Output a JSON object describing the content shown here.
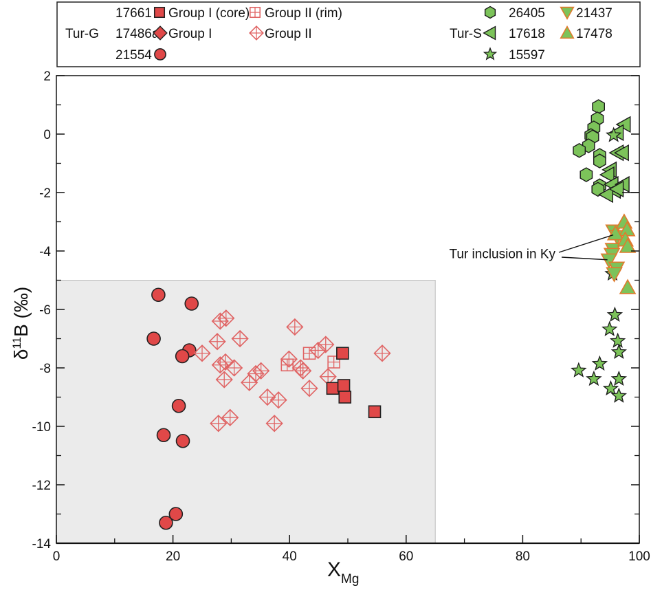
{
  "chart_data": {
    "type": "scatter",
    "title": "",
    "xlabel": "X",
    "xlabel_subscript": "Mg",
    "ylabel": "δ",
    "ylabel_superscript": "11",
    "ylabel_rest": "B (‰)",
    "xlim": [
      0,
      100
    ],
    "ylim": [
      -14,
      2
    ],
    "xticks": [
      0,
      20,
      40,
      60,
      80,
      100
    ],
    "xticks_minor": [
      10,
      30,
      50,
      70,
      90
    ],
    "yticks": [
      2,
      0,
      -2,
      -4,
      -6,
      -8,
      -10,
      -12,
      -14
    ],
    "yticks_minor": [
      1,
      -1,
      -3,
      -5,
      -7,
      -9,
      -11,
      -13
    ],
    "grid": false,
    "legend_position": "top",
    "shaded_region": {
      "x": [
        0,
        65
      ],
      "y": [
        -14,
        -5
      ],
      "color": "#ebebeb"
    },
    "colors": {
      "red": "#e04848",
      "red_outline": "#222222",
      "red_open": "#e06464",
      "green": "#7cc35a",
      "green_outline": "#1a1a1a",
      "orange_outline": "#e07a2c"
    },
    "legend": {
      "tur_g_label": "Tur-G",
      "tur_s_label": "Tur-S",
      "entries": [
        {
          "id": "17661",
          "label": "17661",
          "marker": "square-filled",
          "text": "Group I (core)"
        },
        {
          "id": "17661rim",
          "label": "",
          "marker": "square-grid",
          "text": "Group II (rim)"
        },
        {
          "id": "17486a",
          "label": "17486a",
          "marker": "diamond-filled",
          "text": "Group I"
        },
        {
          "id": "17486a2",
          "label": "",
          "marker": "diamond-cross",
          "text": "Group II"
        },
        {
          "id": "21554",
          "label": "21554",
          "marker": "circle",
          "text": ""
        },
        {
          "id": "26405",
          "label": "26405",
          "marker": "hexagon",
          "text": ""
        },
        {
          "id": "17618",
          "label": "17618",
          "marker": "triangle-left",
          "text": ""
        },
        {
          "id": "15597",
          "label": "15597",
          "marker": "star",
          "text": ""
        },
        {
          "id": "21437",
          "label": "21437",
          "marker": "triangle-down",
          "text": ""
        },
        {
          "id": "17478",
          "label": "17478",
          "marker": "triangle-up",
          "text": ""
        }
      ]
    },
    "annotation": {
      "text": "Tur inclusion in Ky",
      "points_to": [
        [
          96.0,
          -3.45
        ],
        [
          95.0,
          -4.3
        ]
      ],
      "text_at": [
        87.0,
        -4.1
      ]
    },
    "series": [
      {
        "name": "21554",
        "group": "Tur-G",
        "marker": "circle",
        "points": [
          [
            17.5,
            -5.5
          ],
          [
            23.2,
            -5.8
          ],
          [
            16.7,
            -7.0
          ],
          [
            22.8,
            -7.4
          ],
          [
            21.6,
            -7.6
          ],
          [
            21.0,
            -9.3
          ],
          [
            18.4,
            -10.3
          ],
          [
            21.7,
            -10.5
          ],
          [
            20.5,
            -13.0
          ],
          [
            18.8,
            -13.3
          ]
        ]
      },
      {
        "name": "17486a Group II",
        "group": "Tur-G",
        "marker": "diamond-cross",
        "points": [
          [
            28.1,
            -6.4
          ],
          [
            29.1,
            -6.3
          ],
          [
            27.6,
            -7.1
          ],
          [
            31.5,
            -7.0
          ],
          [
            25.0,
            -7.5
          ],
          [
            28.1,
            -7.9
          ],
          [
            29.0,
            -7.8
          ],
          [
            30.5,
            -8.0
          ],
          [
            28.8,
            -8.4
          ],
          [
            33.1,
            -8.5
          ],
          [
            34.2,
            -8.2
          ],
          [
            35.1,
            -8.1
          ],
          [
            36.2,
            -9.0
          ],
          [
            38.1,
            -9.1
          ],
          [
            27.8,
            -9.9
          ],
          [
            29.8,
            -9.7
          ],
          [
            37.4,
            -9.9
          ],
          [
            40.9,
            -6.6
          ],
          [
            46.2,
            -7.2
          ],
          [
            44.9,
            -7.4
          ],
          [
            39.9,
            -7.7
          ],
          [
            42.3,
            -8.1
          ],
          [
            41.9,
            -8.0
          ],
          [
            46.6,
            -8.3
          ],
          [
            43.4,
            -8.7
          ],
          [
            55.9,
            -7.5
          ]
        ]
      },
      {
        "name": "17661 Group II (rim)",
        "group": "Tur-G",
        "marker": "square-grid",
        "points": [
          [
            43.4,
            -7.5
          ],
          [
            39.6,
            -7.9
          ],
          [
            47.6,
            -7.8
          ]
        ]
      },
      {
        "name": "17661 Group I (core)",
        "group": "Tur-G",
        "marker": "square-filled",
        "points": [
          [
            49.1,
            -7.5
          ],
          [
            47.4,
            -8.7
          ],
          [
            49.3,
            -8.6
          ],
          [
            49.5,
            -9.0
          ],
          [
            54.6,
            -9.5
          ]
        ]
      },
      {
        "name": "26405",
        "group": "Tur-S",
        "marker": "hexagon",
        "points": [
          [
            93.0,
            0.94
          ],
          [
            92.8,
            0.52
          ],
          [
            92.2,
            0.21
          ],
          [
            91.7,
            -0.05
          ],
          [
            92.0,
            -0.1
          ],
          [
            91.3,
            -0.4
          ],
          [
            89.7,
            -0.56
          ],
          [
            93.2,
            -0.73
          ],
          [
            93.2,
            -0.92
          ],
          [
            90.9,
            -1.39
          ],
          [
            93.2,
            -1.77
          ],
          [
            92.9,
            -1.89
          ]
        ]
      },
      {
        "name": "17618",
        "group": "Tur-S",
        "marker": "triangle-left",
        "points": [
          [
            97.4,
            0.33
          ],
          [
            96.2,
            0.05
          ],
          [
            96.2,
            -0.64
          ],
          [
            97.1,
            -0.64
          ],
          [
            95.0,
            -1.22
          ],
          [
            94.6,
            -1.39
          ],
          [
            95.3,
            -1.72
          ],
          [
            97.2,
            -1.72
          ],
          [
            95.7,
            -1.93
          ],
          [
            94.4,
            -2.07
          ],
          [
            96.2,
            -1.88
          ]
        ]
      },
      {
        "name": "15597",
        "group": "Tur-S",
        "marker": "star",
        "points": [
          [
            95.6,
            -0.04
          ],
          [
            95.4,
            -4.78
          ],
          [
            95.8,
            -6.19
          ],
          [
            94.9,
            -6.68
          ],
          [
            96.3,
            -7.08
          ],
          [
            96.5,
            -7.46
          ],
          [
            93.2,
            -7.86
          ],
          [
            89.6,
            -8.09
          ],
          [
            92.2,
            -8.38
          ],
          [
            96.5,
            -8.38
          ],
          [
            95.1,
            -8.71
          ],
          [
            96.5,
            -8.96
          ]
        ]
      },
      {
        "name": "21437",
        "group": "Tur-S",
        "marker": "triangle-down",
        "points": [
          [
            95.6,
            -3.32
          ],
          [
            96.2,
            -3.51
          ],
          [
            95.5,
            -3.95
          ],
          [
            95.3,
            -4.12
          ],
          [
            94.8,
            -4.31
          ],
          [
            96.1,
            -4.59
          ],
          [
            95.7,
            -4.78
          ]
        ]
      },
      {
        "name": "17478",
        "group": "Tur-S",
        "marker": "triangle-up",
        "points": [
          [
            97.4,
            -3.01
          ],
          [
            97.9,
            -3.27
          ],
          [
            95.9,
            -3.41
          ],
          [
            97.6,
            -3.62
          ],
          [
            98.0,
            -3.84
          ],
          [
            98.0,
            -5.25
          ]
        ]
      }
    ]
  }
}
